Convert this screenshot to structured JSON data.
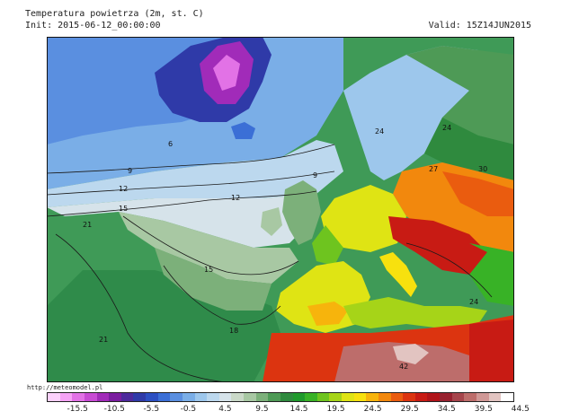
{
  "header": {
    "title": "Temperatura powietrza (2m, st. C)",
    "init": "Init: 2015-06-12_00:00:00",
    "valid": "Valid: 15Z14JUN2015"
  },
  "source_url": "http://meteomodel.pl",
  "contour_labels": [
    "6",
    "9",
    "9",
    "12",
    "12",
    "15",
    "15",
    "18",
    "21",
    "21",
    "24",
    "24",
    "27",
    "30",
    "24",
    "42"
  ],
  "colorbar": {
    "colors": [
      "#fbd1fb",
      "#f5a3f5",
      "#e272e6",
      "#c84bd4",
      "#a12bb9",
      "#7a1d9f",
      "#4d2a9c",
      "#2f3aa8",
      "#2c4fc2",
      "#3b6fd6",
      "#5a8fe0",
      "#7aaee7",
      "#9dc7ec",
      "#bcd8ee",
      "#d6e3ea",
      "#cad9c8",
      "#a8c8a3",
      "#7cb07a",
      "#4e9a56",
      "#2f8a3e",
      "#1f9a2c",
      "#38b226",
      "#6ec41f",
      "#a6d418",
      "#dfe414",
      "#f7e10e",
      "#f7b40c",
      "#f2880d",
      "#ea5c0f",
      "#dc3410",
      "#c81b14",
      "#b01419",
      "#982230",
      "#a6454c",
      "#bd6d6b",
      "#d09896",
      "#e2c4c1",
      "#ffffff"
    ],
    "labels": [
      "-15.5",
      "-10.5",
      "-5.5",
      "-0.5",
      "4.5",
      "9.5",
      "14.5",
      "19.5",
      "24.5",
      "29.5",
      "34.5",
      "39.5",
      "44.5"
    ]
  }
}
